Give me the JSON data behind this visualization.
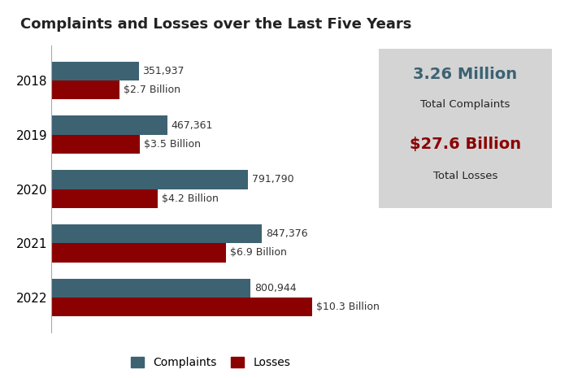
{
  "title": "Complaints and Losses over the Last Five Years",
  "years": [
    "2018",
    "2019",
    "2020",
    "2021",
    "2022"
  ],
  "complaints": [
    351937,
    467361,
    791790,
    847376,
    800944
  ],
  "losses_billions": [
    2.7,
    3.5,
    4.2,
    6.9,
    10.3
  ],
  "loss_labels": [
    "$2.7 Billion",
    "$3.5 Billion",
    "$4.2 Billion",
    "$6.9 Billion",
    "$10.3 Billion"
  ],
  "complaint_labels": [
    "351,937",
    "467,361",
    "791,790",
    "847,376",
    "800,944"
  ],
  "complaint_color": "#3d6272",
  "loss_color": "#8b0000",
  "max_complaints": 1050000,
  "max_losses": 10.3,
  "scale_factor": 1050000,
  "total_complaints_label": "3.26 Million",
  "total_complaints_sub": "Total Complaints",
  "total_losses_label": "$27.6 Billion",
  "total_losses_sub": "Total Losses",
  "total_complaints_color": "#3d6272",
  "total_losses_color": "#8b0000",
  "background_color": "#ffffff",
  "box_color": "#d4d4d4",
  "title_fontsize": 13,
  "label_fontsize": 9,
  "year_fontsize": 11,
  "legend_fontsize": 10
}
